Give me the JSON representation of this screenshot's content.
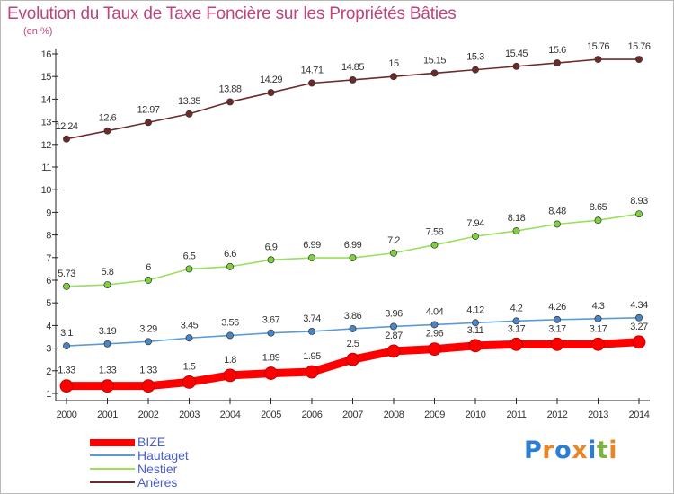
{
  "header": {
    "title": "Evolution du Taux de Taxe Foncière sur les Propriétés Bâties",
    "subtitle": "(en %)"
  },
  "legend": {
    "items": [
      {
        "label": "BIZE",
        "color": "#ff0000"
      },
      {
        "label": "Hautaget",
        "color": "#5b9bd5"
      },
      {
        "label": "Nestier",
        "color": "#99e05c"
      },
      {
        "label": "Anères",
        "color": "#6e2a2a"
      }
    ]
  },
  "logo": {
    "letters": [
      "P",
      "r",
      "o",
      "x",
      "i",
      "t",
      "i"
    ],
    "colors": [
      "#2a7fd4",
      "#e8872a",
      "#2a7fd4",
      "#e8872a",
      "#2a7fd4",
      "#7cb342",
      "#e8872a"
    ]
  },
  "chart_data": {
    "type": "line",
    "title": "Evolution du Taux de Taxe Foncière sur les Propriétés Bâties",
    "ylabel": "(en %)",
    "xlabel": "",
    "ylim": [
      1,
      16
    ],
    "yticks": [
      1,
      2,
      3,
      4,
      5,
      6,
      7,
      8,
      9,
      10,
      11,
      12,
      13,
      14,
      15,
      16
    ],
    "grid": false,
    "categories": [
      "2000",
      "2001",
      "2002",
      "2003",
      "2004",
      "2005",
      "2006",
      "2007",
      "2008",
      "2009",
      "2010",
      "2011",
      "2012",
      "2013",
      "2014"
    ],
    "series": [
      {
        "name": "Anères",
        "color": "#6e2a2a",
        "marker": "#6e2a2a",
        "values": [
          12.24,
          12.6,
          12.97,
          13.35,
          13.88,
          14.29,
          14.71,
          14.85,
          15,
          15.15,
          15.3,
          15.45,
          15.6,
          15.76,
          15.76
        ],
        "labels": [
          "12.24",
          "12.6",
          "12.97",
          "13.35",
          "13.88",
          "14.29",
          "14.71",
          "14.85",
          "15",
          "15.15",
          "15.3",
          "15.45",
          "15.6",
          "15.76",
          "15.76"
        ]
      },
      {
        "name": "Nestier",
        "color": "#99e05c",
        "marker": "#7ed040",
        "values": [
          5.73,
          5.8,
          6,
          6.5,
          6.6,
          6.9,
          6.99,
          6.99,
          7.2,
          7.56,
          7.94,
          8.18,
          8.48,
          8.65,
          8.93
        ],
        "labels": [
          "5.73",
          "5.8",
          "6",
          "6.5",
          "6.6",
          "6.9",
          "6.99",
          "6.99",
          "7.2",
          "7.56",
          "7.94",
          "8.18",
          "8.48",
          "8.65",
          "8.93"
        ]
      },
      {
        "name": "Hautaget",
        "color": "#5b9bd5",
        "marker": "#4a86c5",
        "values": [
          3.1,
          3.19,
          3.29,
          3.45,
          3.56,
          3.67,
          3.74,
          3.86,
          3.96,
          4.04,
          4.12,
          4.2,
          4.26,
          4.3,
          4.34
        ],
        "labels": [
          "3.1",
          "3.19",
          "3.29",
          "3.45",
          "3.56",
          "3.67",
          "3.74",
          "3.86",
          "3.96",
          "4.04",
          "4.12",
          "4.2",
          "4.26",
          "4.3",
          "4.34"
        ]
      },
      {
        "name": "BIZE",
        "color": "#ff0000",
        "marker": "#ff0000",
        "values": [
          1.33,
          1.33,
          1.33,
          1.5,
          1.8,
          1.89,
          1.95,
          2.5,
          2.87,
          2.96,
          3.11,
          3.17,
          3.17,
          3.17,
          3.27
        ],
        "labels": [
          "1.33",
          "1.33",
          "1.33",
          "1.5",
          "1.8",
          "1.89",
          "1.95",
          "2.5",
          "2.87",
          "2.96",
          "3.11",
          "3.17",
          "3.17",
          "3.17",
          "3.27"
        ]
      }
    ]
  }
}
